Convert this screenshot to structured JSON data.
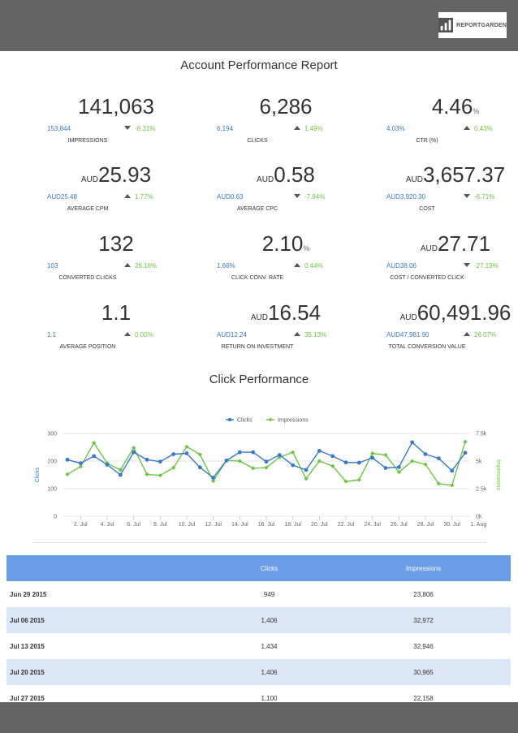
{
  "header": {
    "logo_text": "REPORTGARDEN"
  },
  "title": "Account Performance Report",
  "metrics": [
    {
      "value": "141,063",
      "prefix": "",
      "suffix": "",
      "prev": "153,844",
      "dir": "down",
      "delta": "-8.31%",
      "label": "IMPRESSIONS"
    },
    {
      "value": "6,286",
      "prefix": "",
      "suffix": "",
      "prev": "6,194",
      "dir": "up",
      "delta": "1.49%",
      "label": "CLICKS"
    },
    {
      "value": "4.46",
      "prefix": "",
      "suffix": "%",
      "prev": "4.03%",
      "dir": "up",
      "delta": "0.43%",
      "label": "CTR (%)"
    },
    {
      "value": "25.93",
      "prefix": "AUD",
      "suffix": "",
      "prev": "AUD25.48",
      "dir": "up",
      "delta": "1.77%",
      "label": "AVERAGE CPM"
    },
    {
      "value": "0.58",
      "prefix": "AUD",
      "suffix": "",
      "prev": "AUD0.63",
      "dir": "down",
      "delta": "-7.94%",
      "label": "AVERAGE CPC"
    },
    {
      "value": "3,657.37",
      "prefix": "AUD",
      "suffix": "",
      "prev": "AUD3,920.30",
      "dir": "down",
      "delta": "-6.71%",
      "label": "COST"
    },
    {
      "value": "132",
      "prefix": "",
      "suffix": "",
      "prev": "103",
      "dir": "up",
      "delta": "28.16%",
      "label": "CONVERTED CLICKS"
    },
    {
      "value": "2.10",
      "prefix": "",
      "suffix": "%",
      "prev": "1.66%",
      "dir": "up",
      "delta": "0.44%",
      "label": "CLICK CONV. RATE"
    },
    {
      "value": "27.71",
      "prefix": "AUD",
      "suffix": "",
      "prev": "AUD38.06",
      "dir": "down",
      "delta": "-27.19%",
      "label": "COST / CONVERTED CLICK"
    },
    {
      "value": "1.1",
      "prefix": "",
      "suffix": "",
      "prev": "1.1",
      "dir": "up",
      "delta": "0.00%",
      "label": "AVERAGE POSITION"
    },
    {
      "value": "16.54",
      "prefix": "AUD",
      "suffix": "",
      "prev": "AUD12.24",
      "dir": "up",
      "delta": "35.13%",
      "label": "RETURN ON INVESTMENT"
    },
    {
      "value": "60,491.96",
      "prefix": "AUD",
      "suffix": "",
      "prev": "AUD47,981.90",
      "dir": "up",
      "delta": "26.07%",
      "label": "TOTAL CONVERSION VALUE"
    }
  ],
  "click_title": "Click Performance",
  "chart_data": {
    "type": "line",
    "ylabel": "Clicks",
    "y2label": "Impressions",
    "ylim": [
      0,
      300
    ],
    "y2lim": [
      0,
      7500
    ],
    "yticks": [
      "0",
      "100",
      "200",
      "300"
    ],
    "y2ticks": [
      "0k",
      "2.5k",
      "5k",
      "7.5k"
    ],
    "x_tick_labels": [
      "2. Jul",
      "4. Jul",
      "6. Jul",
      "8. Jul",
      "10. Jul",
      "12. Jul",
      "14. Jul",
      "16. Jul",
      "18. Jul",
      "20. Jul",
      "22. Jul",
      "24. Jul",
      "26. Jul",
      "28. Jul",
      "30. Jul",
      "1. Aug"
    ],
    "legend": "top-center",
    "series": [
      {
        "name": "Clicks",
        "axis": "left",
        "color": "#3a78c9",
        "values": [
          205,
          192,
          218,
          187,
          150,
          232,
          205,
          198,
          225,
          228,
          177,
          140,
          202,
          232,
          232,
          198,
          222,
          185,
          168,
          237,
          218,
          195,
          194,
          212,
          175,
          178,
          268,
          225,
          210,
          165,
          230
        ]
      },
      {
        "name": "Impressions",
        "axis": "right",
        "color": "#6cc644",
        "values": [
          3800,
          4500,
          6650,
          4800,
          4200,
          6200,
          3800,
          3700,
          4400,
          6300,
          5600,
          3200,
          5050,
          5000,
          4350,
          4400,
          5350,
          5800,
          3400,
          5000,
          4550,
          3150,
          3300,
          5700,
          5550,
          4000,
          5000,
          4700,
          2950,
          2800,
          6750
        ]
      }
    ]
  },
  "table": {
    "headers": [
      "",
      "Clicks",
      "Impressions"
    ],
    "rows": [
      [
        "Jun 29 2015",
        "949",
        "23,806"
      ],
      [
        "Jul 06 2015",
        "1,406",
        "32,972"
      ],
      [
        "Jul 13 2015",
        "1,434",
        "32,946"
      ],
      [
        "Jul 20 2015",
        "1,406",
        "30,965"
      ],
      [
        "Jul 27 2015",
        "1,100",
        "22,158"
      ]
    ]
  }
}
